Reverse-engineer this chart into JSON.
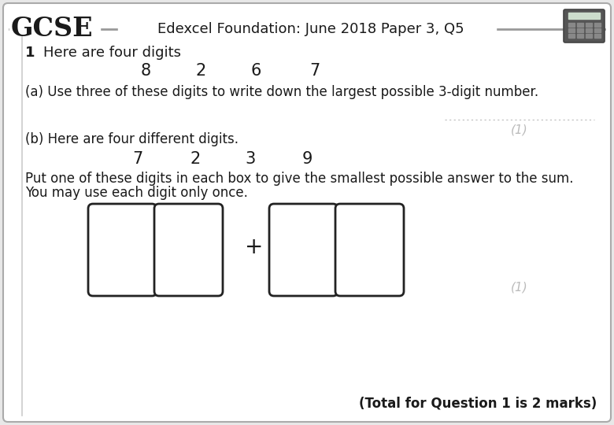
{
  "title": "Edexcel Foundation: June 2018 Paper 3, Q5",
  "gcse_text": "GCSE",
  "question_number": "1",
  "q1_intro": "Here are four digits",
  "digits_row1": [
    "8",
    "2",
    "6",
    "7"
  ],
  "part_a_text": "(a) Use three of these digits to write down the largest possible 3-digit number.",
  "mark_a": "(1)",
  "part_b_label": "(b) Here are four different digits.",
  "digits_row2": [
    "7",
    "2",
    "3",
    "9"
  ],
  "part_b_instr1": "Put one of these digits in each box to give the smallest possible answer to the sum.",
  "part_b_instr2": "You may use each digit only once.",
  "mark_b": "(1)",
  "total_text": "(Total for Question 1 is 2 marks)",
  "bg_color": "#e8e8e8",
  "box_bg": "#ffffff",
  "text_color": "#1a1a1a",
  "mark_color": "#bbbbbb",
  "header_line_color": "#999999",
  "border_color": "#aaaaaa"
}
